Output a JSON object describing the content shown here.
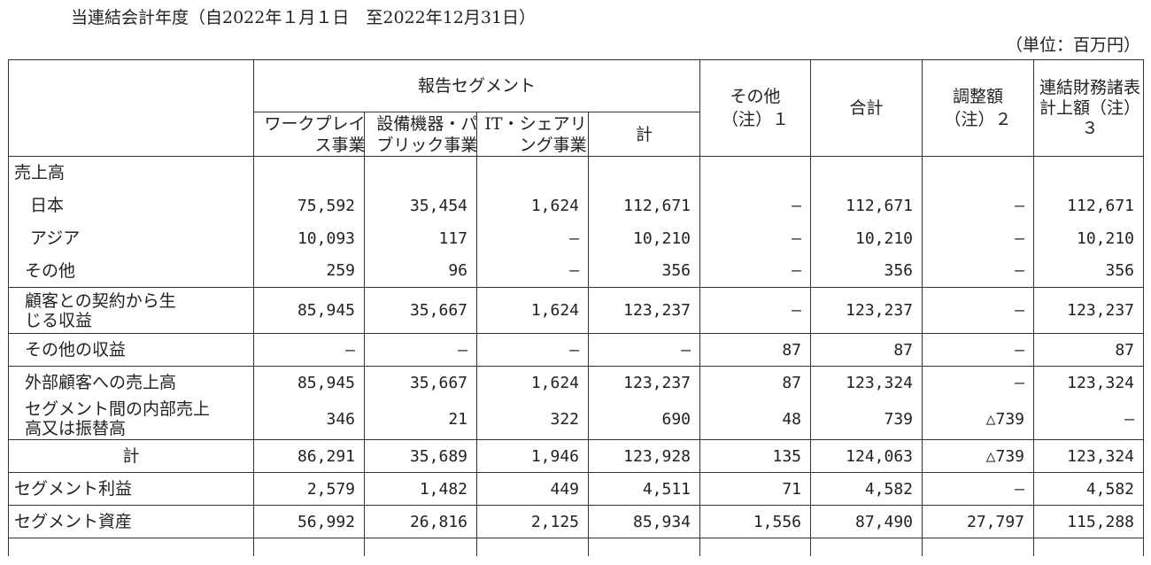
{
  "period_label": "当連結会計年度（自2022年１月１日　至2022年12月31日）",
  "unit_label": "（単位：百万円）",
  "headers": {
    "reported_segments": "報告セグメント",
    "workplace": "ワークプレイス事業",
    "equipment_public": "設備機器・パブリック事業",
    "it_sharing": "IT・シェアリング事業",
    "subtotal": "計",
    "other": "その他（注）１",
    "total": "合計",
    "adjustment": "調整額（注）２",
    "consolidated": "連結財務諸表計上額（注）３"
  },
  "rows": [
    {
      "label": "売上高",
      "values": [
        "",
        "",
        "",
        "",
        "",
        "",
        "",
        ""
      ]
    },
    {
      "label": "日本",
      "values": [
        "75,592",
        "35,454",
        "1,624",
        "112,671",
        "—",
        "112,671",
        "—",
        "112,671"
      ]
    },
    {
      "label": "アジア",
      "values": [
        "10,093",
        "117",
        "—",
        "10,210",
        "—",
        "10,210",
        "—",
        "10,210"
      ]
    },
    {
      "label": "その他",
      "values": [
        "259",
        "96",
        "—",
        "356",
        "—",
        "356",
        "—",
        "356"
      ]
    },
    {
      "label": "顧客との契約から生じる収益",
      "values": [
        "85,945",
        "35,667",
        "1,624",
        "123,237",
        "—",
        "123,237",
        "—",
        "123,237"
      ]
    },
    {
      "label": "その他の収益",
      "values": [
        "—",
        "—",
        "—",
        "—",
        "87",
        "87",
        "—",
        "87"
      ]
    },
    {
      "label": "外部顧客への売上高",
      "values": [
        "85,945",
        "35,667",
        "1,624",
        "123,237",
        "87",
        "123,324",
        "—",
        "123,324"
      ]
    },
    {
      "label": "セグメント間の内部売上高又は振替高",
      "values": [
        "346",
        "21",
        "322",
        "690",
        "48",
        "739",
        "△739",
        "—"
      ]
    },
    {
      "label": "計",
      "values": [
        "86,291",
        "35,689",
        "1,946",
        "123,928",
        "135",
        "124,063",
        "△739",
        "123,324"
      ]
    },
    {
      "label": "セグメント利益",
      "values": [
        "2,579",
        "1,482",
        "449",
        "4,511",
        "71",
        "4,582",
        "—",
        "4,582"
      ]
    },
    {
      "label": "セグメント資産",
      "values": [
        "56,992",
        "26,816",
        "2,125",
        "85,934",
        "1,556",
        "87,490",
        "27,797",
        "115,288"
      ]
    }
  ]
}
